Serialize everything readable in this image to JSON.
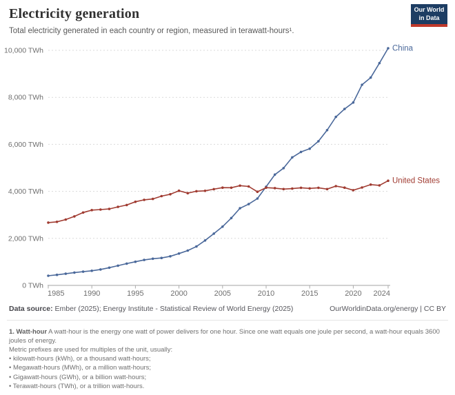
{
  "header": {
    "title": "Electricity generation",
    "subtitle": "Total electricity generated in each country or region, measured in terawatt-hours¹.",
    "logo": {
      "line1": "Our World",
      "line2": "in Data"
    }
  },
  "chart_data": {
    "type": "line",
    "title": "Electricity generation",
    "unit": "TWh",
    "xlim": [
      1985,
      2024
    ],
    "ylim": [
      0,
      10000
    ],
    "grid": true,
    "legend_position": "end-of-line",
    "x": [
      1985,
      1986,
      1987,
      1988,
      1989,
      1990,
      1991,
      1992,
      1993,
      1994,
      1995,
      1996,
      1997,
      1998,
      1999,
      2000,
      2001,
      2002,
      2003,
      2004,
      2005,
      2006,
      2007,
      2008,
      2009,
      2010,
      2011,
      2012,
      2013,
      2014,
      2015,
      2016,
      2017,
      2018,
      2019,
      2020,
      2021,
      2022,
      2023,
      2024
    ],
    "series": [
      {
        "name": "China",
        "color": "#4A689A",
        "values": [
          411,
          450,
          497,
          545,
          585,
          621,
          678,
          754,
          839,
          928,
          1007,
          1081,
          1134,
          1167,
          1239,
          1356,
          1481,
          1654,
          1911,
          2203,
          2500,
          2866,
          3282,
          3457,
          3696,
          4197,
          4713,
          4988,
          5447,
          5678,
          5815,
          6133,
          6604,
          7166,
          7503,
          7779,
          8534,
          8840,
          9456,
          10087
        ]
      },
      {
        "name": "United States",
        "color": "#A03B31",
        "values": [
          2672,
          2703,
          2802,
          2935,
          3101,
          3203,
          3226,
          3251,
          3340,
          3418,
          3558,
          3640,
          3676,
          3798,
          3877,
          4026,
          3924,
          4005,
          4024,
          4093,
          4157,
          4155,
          4244,
          4209,
          3981,
          4157,
          4138,
          4097,
          4116,
          4153,
          4127,
          4153,
          4096,
          4222,
          4158,
          4050,
          4165,
          4287,
          4254,
          4453
        ]
      }
    ],
    "yticks": [
      0,
      2000,
      4000,
      6000,
      8000,
      10000
    ],
    "ytick_labels": [
      "0 TWh",
      "2,000 TWh",
      "4,000 TWh",
      "6,000 TWh",
      "8,000 TWh",
      "10,000 TWh"
    ],
    "xticks": [
      1985,
      1990,
      1995,
      2000,
      2005,
      2010,
      2015,
      2020,
      2024
    ]
  },
  "footer": {
    "datasource_label": "Data source:",
    "datasource_text": " Ember (2025); Energy Institute - Statistical Review of World Energy (2025)",
    "rights": "OurWorldinData.org/energy | CC BY"
  },
  "notes": {
    "note1_label": "1. Watt-hour",
    "note1_text": " A watt-hour is the energy one watt of power delivers for one hour. Since one watt equals one joule per second, a watt-hour equals 3600 joules of energy.",
    "intro": "Metric prefixes are used for multiples of the unit, usually:",
    "bullets": [
      "• kilowatt-hours (kWh), or a thousand watt-hours;",
      "• Megawatt-hours (MWh), or a million watt-hours;",
      "• Gigawatt-hours (GWh), or a billion watt-hours;",
      "• Terawatt-hours (TWh), or a trillion watt-hours."
    ]
  }
}
